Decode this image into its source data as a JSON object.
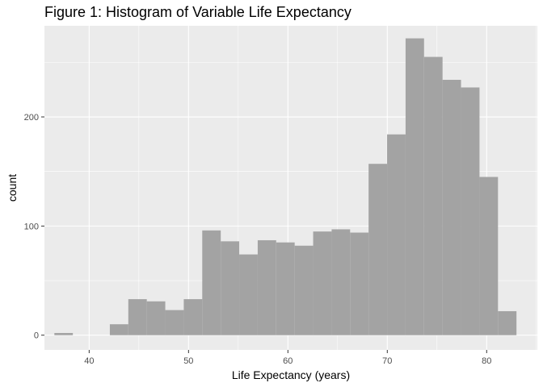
{
  "title": "Figure 1: Histogram of Variable Life Expectancy",
  "chart_data": {
    "type": "bar",
    "title": "Figure 1: Histogram of Variable Life Expectancy",
    "xlabel": "Life Expectancy (years)",
    "ylabel": "count",
    "x_ticks": [
      40,
      50,
      60,
      70,
      80
    ],
    "y_ticks": [
      0,
      100,
      200
    ],
    "xlim": [
      35.5,
      85.1
    ],
    "ylim": [
      -13.5,
      283.5
    ],
    "bin_width": 1.86,
    "bin_start": 36.5,
    "bins": [
      {
        "x": [
          36.5,
          38.36
        ],
        "count": 2
      },
      {
        "x": [
          38.36,
          40.22
        ],
        "count": 0
      },
      {
        "x": [
          40.22,
          42.08
        ],
        "count": 0
      },
      {
        "x": [
          42.08,
          43.94
        ],
        "count": 10
      },
      {
        "x": [
          43.94,
          45.8
        ],
        "count": 33
      },
      {
        "x": [
          45.8,
          47.66
        ],
        "count": 31
      },
      {
        "x": [
          47.66,
          49.52
        ],
        "count": 23
      },
      {
        "x": [
          49.52,
          51.38
        ],
        "count": 33
      },
      {
        "x": [
          51.38,
          53.24
        ],
        "count": 96
      },
      {
        "x": [
          53.24,
          55.1
        ],
        "count": 86
      },
      {
        "x": [
          55.1,
          56.96
        ],
        "count": 74
      },
      {
        "x": [
          56.96,
          58.82
        ],
        "count": 87
      },
      {
        "x": [
          58.82,
          60.68
        ],
        "count": 85
      },
      {
        "x": [
          60.68,
          62.54
        ],
        "count": 82
      },
      {
        "x": [
          62.54,
          64.4
        ],
        "count": 95
      },
      {
        "x": [
          64.4,
          66.26
        ],
        "count": 97
      },
      {
        "x": [
          66.26,
          68.12
        ],
        "count": 94
      },
      {
        "x": [
          68.12,
          69.98
        ],
        "count": 157
      },
      {
        "x": [
          69.98,
          71.84
        ],
        "count": 184
      },
      {
        "x": [
          71.84,
          73.7
        ],
        "count": 272
      },
      {
        "x": [
          73.7,
          75.56
        ],
        "count": 255
      },
      {
        "x": [
          75.56,
          77.42
        ],
        "count": 234
      },
      {
        "x": [
          77.42,
          79.28
        ],
        "count": 227
      },
      {
        "x": [
          79.28,
          81.14
        ],
        "count": 145
      },
      {
        "x": [
          81.14,
          83.0
        ],
        "count": 22
      }
    ],
    "grid": true,
    "colors": {
      "panel": "#ebebeb",
      "grid": "#ffffff",
      "bar": "#a3a3a3",
      "text": "#4d4d4d",
      "tick": "#333333"
    }
  }
}
